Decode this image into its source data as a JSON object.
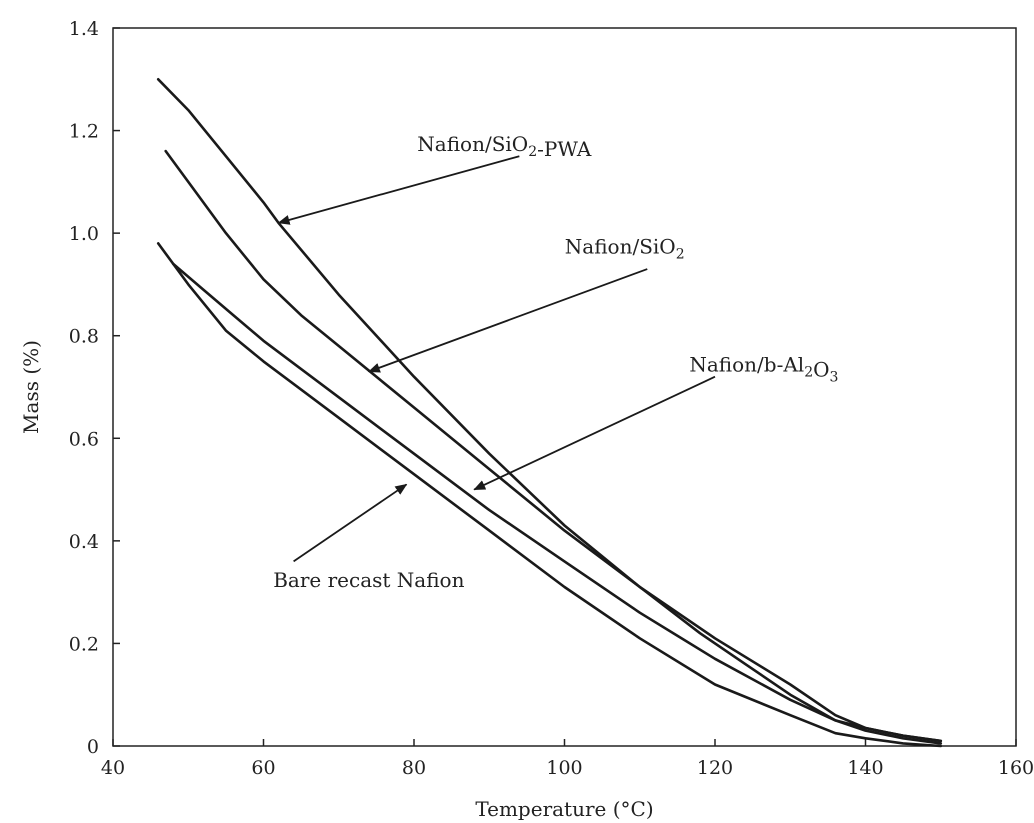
{
  "chart_data": {
    "type": "line",
    "xlabel": "Temperature (°C)",
    "ylabel": "Mass (%)",
    "xlim": [
      40,
      160
    ],
    "ylim": [
      0,
      1.4
    ],
    "xticks": [
      "40",
      "60",
      "80",
      "100",
      "120",
      "140",
      "160"
    ],
    "yticks": [
      "0",
      "0.2",
      "0.4",
      "0.6",
      "0.8",
      "1.0",
      "1.2",
      "1.4"
    ],
    "grid": false,
    "series": [
      {
        "name": "Nafion/SiO2-PWA",
        "x": [
          46,
          50,
          55,
          60,
          62,
          70,
          80,
          90,
          100,
          110,
          118,
          124,
          130,
          136,
          140,
          145,
          150
        ],
        "y": [
          1.3,
          1.24,
          1.15,
          1.06,
          1.02,
          0.88,
          0.72,
          0.57,
          0.43,
          0.31,
          0.22,
          0.16,
          0.1,
          0.05,
          0.035,
          0.02,
          0.01
        ]
      },
      {
        "name": "Nafion/SiO2",
        "x": [
          47,
          50,
          55,
          60,
          65,
          70,
          80,
          90,
          100,
          110,
          120,
          130,
          136,
          140,
          145,
          150
        ],
        "y": [
          1.16,
          1.1,
          1.0,
          0.91,
          0.84,
          0.78,
          0.66,
          0.54,
          0.42,
          0.31,
          0.21,
          0.12,
          0.06,
          0.035,
          0.02,
          0.01
        ]
      },
      {
        "name": "Nafion/b-Al2O3",
        "x": [
          48,
          52,
          56,
          60,
          70,
          80,
          90,
          100,
          110,
          120,
          130,
          136,
          140,
          145,
          150
        ],
        "y": [
          0.94,
          0.89,
          0.84,
          0.79,
          0.68,
          0.57,
          0.46,
          0.36,
          0.26,
          0.17,
          0.09,
          0.05,
          0.03,
          0.015,
          0.005
        ]
      },
      {
        "name": "Bare recast Nafion",
        "x": [
          46,
          50,
          55,
          60,
          70,
          80,
          90,
          100,
          110,
          120,
          130,
          136,
          140,
          145,
          150
        ],
        "y": [
          0.98,
          0.9,
          0.81,
          0.75,
          0.64,
          0.53,
          0.42,
          0.31,
          0.21,
          0.12,
          0.06,
          0.025,
          0.015,
          0.005,
          0.0
        ]
      }
    ],
    "annotations": [
      {
        "text": "Nafion/SiO",
        "sub": "2",
        "text2": "-PWA",
        "tx": 92,
        "ty": 1.16,
        "ax0": 94,
        "ay0": 1.15,
        "ax1": 62,
        "ay1": 1.02
      },
      {
        "text": "Nafion/SiO",
        "sub": "2",
        "text2": "",
        "tx": 108,
        "ty": 0.96,
        "ax0": 111,
        "ay0": 0.93,
        "ax1": 74,
        "ay1": 0.73
      },
      {
        "text": "Nafion/b-Al",
        "sub": "2",
        "text2": "O",
        "sub2": "3",
        "tx": 126.5,
        "ty": 0.73,
        "ax0": 120,
        "ay0": 0.72,
        "ax1": 88,
        "ay1": 0.5
      },
      {
        "text": "Bare recast Nafion",
        "sub": "",
        "text2": "",
        "tx": 74,
        "ty": 0.31,
        "ax0": 64,
        "ay0": 0.36,
        "ax1": 79,
        "ay1": 0.51
      }
    ]
  }
}
